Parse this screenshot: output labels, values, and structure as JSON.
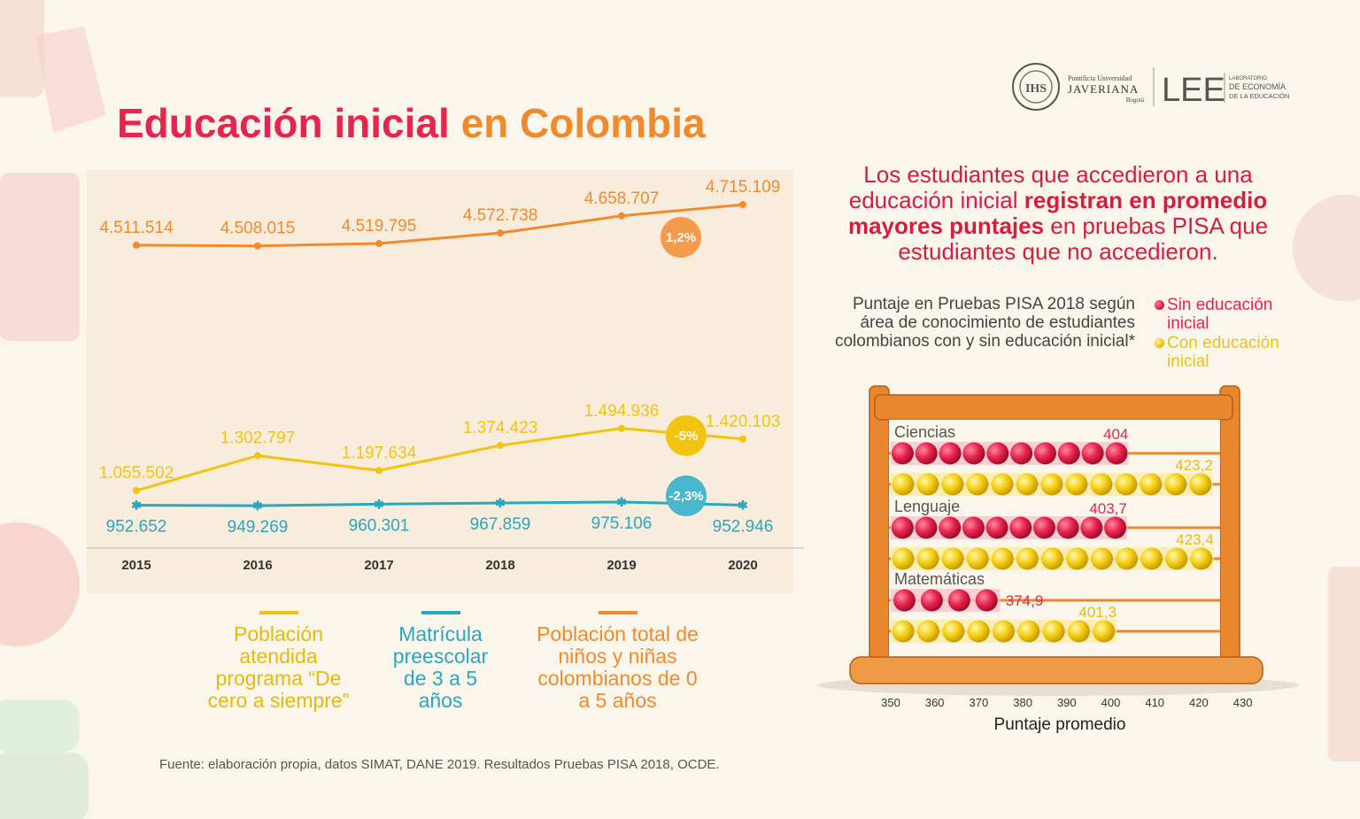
{
  "title": {
    "part1": "Educación inicial",
    "part2": "en Colombia"
  },
  "logo": {
    "univ_line1": "Pontificia Universidad",
    "univ_line2": "JAVERIANA",
    "univ_line3": "Bogotá",
    "lab_abbr": "LEE",
    "lab_line1": "LABORATORIO",
    "lab_line2": "DE ECONOMÍA",
    "lab_line3": "DE LA EDUCACIÓN"
  },
  "headline": {
    "pre": "Los estudiantes que accedieron a una educación inicial ",
    "bold": "registran en promedio mayores puntajes",
    "post": " en pruebas PISA que estudiantes que no accedieron."
  },
  "colors": {
    "red": "#e8244e",
    "orange": "#f08a2c",
    "yellow": "#f2c40f",
    "teal": "#2aa6bf",
    "wood": "#e8872e"
  },
  "chart_data": [
    {
      "type": "line",
      "x": [
        "2015",
        "2016",
        "2017",
        "2018",
        "2019",
        "2020"
      ],
      "series": [
        {
          "name": "Población total de niños y niñas colombianos de 0 a 5 años",
          "color": "#f08a2c",
          "values": [
            4511514,
            4508015,
            4519795,
            4572738,
            4658707,
            4715109
          ],
          "labels": [
            "4.511.514",
            "4.508.015",
            "4.519.795",
            "4.572.738",
            "4.658.707",
            "4.715.109"
          ],
          "change": "1,2%"
        },
        {
          "name": "Población atendida programa “De cero a siempre”",
          "color": "#f2c40f",
          "values": [
            1055502,
            1302797,
            1197634,
            1374423,
            1494936,
            1420103
          ],
          "labels": [
            "1.055.502",
            "1.302.797",
            "1.197.634",
            "1.374.423",
            "1.494.936",
            "1.420.103"
          ],
          "change": "-5%"
        },
        {
          "name": "Matrícula preescolar de 3 a 5 años",
          "color": "#2aa6bf",
          "values": [
            952652,
            949269,
            960301,
            967859,
            975106,
            952946
          ],
          "labels": [
            "952.652",
            "949.269",
            "960.301",
            "967.859",
            "975.106",
            "952.946"
          ],
          "change": "-2,3%"
        }
      ]
    },
    {
      "type": "bar",
      "title": "Puntaje en Pruebas PISA 2018 según área de conocimiento de estudiantes colombianos con y sin educación inicial*",
      "xlabel": "Puntaje promedio",
      "xlim": [
        345,
        430
      ],
      "ticks": [
        350,
        360,
        370,
        380,
        390,
        400,
        410,
        420,
        430
      ],
      "categories": [
        "Ciencias",
        "Lenguaje",
        "Matemáticas"
      ],
      "series": [
        {
          "name": "Sin educación inicial",
          "color": "#e8244e",
          "values": [
            404,
            403.7,
            374.9
          ],
          "labels": [
            "404",
            "403,7",
            "374,9"
          ]
        },
        {
          "name": "Con educación inicial",
          "color": "#f2c40f",
          "values": [
            423.2,
            423.4,
            401.3
          ],
          "labels": [
            "423,2",
            "423,4",
            "401,3"
          ]
        }
      ]
    }
  ],
  "source": "Fuente: elaboración propia, datos SIMAT, DANE 2019. Resultados Pruebas PISA 2018, OCDE."
}
